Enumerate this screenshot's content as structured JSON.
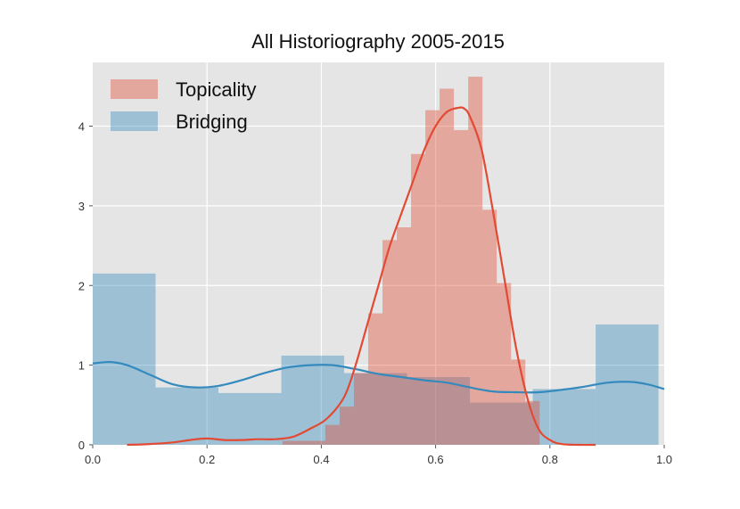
{
  "chart_data": {
    "type": "bar",
    "title": "All Historiography 2005-2015",
    "xlabel": "",
    "ylabel": "",
    "xlim": [
      0.0,
      1.0
    ],
    "ylim": [
      0,
      4.8
    ],
    "x_ticks": [
      "0.0",
      "0.2",
      "0.4",
      "0.6",
      "0.8",
      "1.0"
    ],
    "y_ticks": [
      "0",
      "1",
      "2",
      "3",
      "4"
    ],
    "grid": true,
    "legend_position": "top-left",
    "series": [
      {
        "name": "Topicality",
        "kind": "histogram",
        "color": "#e24a33",
        "bins": [
          {
            "x0": 0.332,
            "x1": 0.357,
            "y": 0.05
          },
          {
            "x0": 0.357,
            "x1": 0.382,
            "y": 0.05
          },
          {
            "x0": 0.382,
            "x1": 0.407,
            "y": 0.05
          },
          {
            "x0": 0.407,
            "x1": 0.432,
            "y": 0.25
          },
          {
            "x0": 0.432,
            "x1": 0.457,
            "y": 0.48
          },
          {
            "x0": 0.457,
            "x1": 0.482,
            "y": 0.9
          },
          {
            "x0": 0.482,
            "x1": 0.507,
            "y": 1.65
          },
          {
            "x0": 0.507,
            "x1": 0.532,
            "y": 2.57
          },
          {
            "x0": 0.532,
            "x1": 0.557,
            "y": 2.73
          },
          {
            "x0": 0.557,
            "x1": 0.582,
            "y": 3.65
          },
          {
            "x0": 0.582,
            "x1": 0.607,
            "y": 4.2
          },
          {
            "x0": 0.607,
            "x1": 0.632,
            "y": 4.47
          },
          {
            "x0": 0.632,
            "x1": 0.657,
            "y": 3.95
          },
          {
            "x0": 0.657,
            "x1": 0.682,
            "y": 4.62
          },
          {
            "x0": 0.682,
            "x1": 0.707,
            "y": 2.95
          },
          {
            "x0": 0.707,
            "x1": 0.732,
            "y": 2.03
          },
          {
            "x0": 0.732,
            "x1": 0.757,
            "y": 1.07
          },
          {
            "x0": 0.757,
            "x1": 0.782,
            "y": 0.55
          }
        ],
        "kde": {
          "x": [
            0.06,
            0.1,
            0.14,
            0.17,
            0.2,
            0.23,
            0.26,
            0.29,
            0.32,
            0.35,
            0.38,
            0.41,
            0.44,
            0.46,
            0.48,
            0.5,
            0.52,
            0.54,
            0.56,
            0.58,
            0.6,
            0.62,
            0.64,
            0.65,
            0.66,
            0.68,
            0.7,
            0.72,
            0.74,
            0.76,
            0.78,
            0.8,
            0.82,
            0.85,
            0.88
          ],
          "y": [
            0.0,
            0.01,
            0.03,
            0.06,
            0.08,
            0.06,
            0.06,
            0.07,
            0.07,
            0.1,
            0.2,
            0.33,
            0.6,
            1.0,
            1.5,
            2.0,
            2.5,
            2.9,
            3.3,
            3.7,
            4.0,
            4.18,
            4.23,
            4.22,
            4.12,
            3.72,
            2.95,
            2.1,
            1.25,
            0.6,
            0.2,
            0.06,
            0.01,
            0.0,
            0.0
          ]
        }
      },
      {
        "name": "Bridging",
        "kind": "histogram",
        "color": "#348abd",
        "bins": [
          {
            "x0": 0.0,
            "x1": 0.11,
            "y": 2.15
          },
          {
            "x0": 0.11,
            "x1": 0.22,
            "y": 0.72
          },
          {
            "x0": 0.22,
            "x1": 0.33,
            "y": 0.65
          },
          {
            "x0": 0.33,
            "x1": 0.44,
            "y": 1.12
          },
          {
            "x0": 0.44,
            "x1": 0.55,
            "y": 0.9
          },
          {
            "x0": 0.55,
            "x1": 0.66,
            "y": 0.85
          },
          {
            "x0": 0.66,
            "x1": 0.77,
            "y": 0.53
          },
          {
            "x0": 0.77,
            "x1": 0.88,
            "y": 0.7
          },
          {
            "x0": 0.88,
            "x1": 0.99,
            "y": 1.51
          }
        ],
        "kde": {
          "x": [
            0.0,
            0.03,
            0.06,
            0.1,
            0.14,
            0.18,
            0.22,
            0.26,
            0.3,
            0.34,
            0.38,
            0.42,
            0.46,
            0.5,
            0.54,
            0.58,
            0.62,
            0.66,
            0.7,
            0.74,
            0.78,
            0.82,
            0.86,
            0.9,
            0.94,
            0.97,
            1.0
          ],
          "y": [
            1.02,
            1.04,
            1.0,
            0.88,
            0.76,
            0.72,
            0.74,
            0.81,
            0.9,
            0.97,
            1.0,
            1.0,
            0.95,
            0.89,
            0.85,
            0.81,
            0.78,
            0.72,
            0.67,
            0.66,
            0.66,
            0.69,
            0.73,
            0.78,
            0.79,
            0.76,
            0.7
          ]
        }
      }
    ]
  }
}
